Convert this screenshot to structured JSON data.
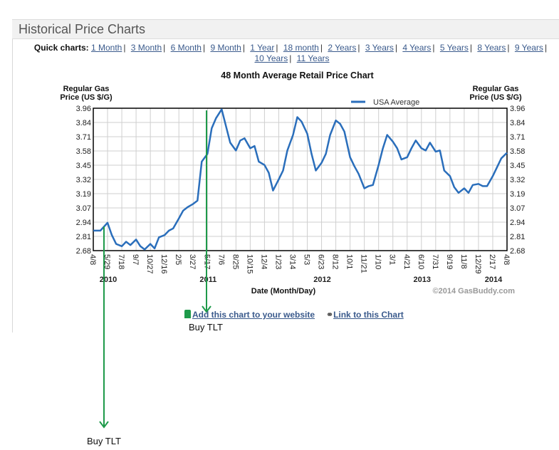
{
  "header": {
    "title": "Historical Price Charts"
  },
  "quick_charts": {
    "label": "Quick charts:",
    "links": [
      "1 Month",
      "3 Month",
      "6 Month",
      "9 Month",
      "1 Year",
      "18 month",
      "2 Years",
      "3 Years",
      "4 Years",
      "5 Years",
      "8 Years",
      "9 Years",
      "10 Years",
      "11 Years"
    ]
  },
  "footer_links": {
    "add_chart": "Add this chart to your website",
    "link_chart": "Link to this Chart"
  },
  "annotations": [
    {
      "text": "Buy TLT",
      "color": "#1e9a4a"
    },
    {
      "text": "Buy TLT",
      "color": "#1e9a4a"
    }
  ],
  "chart_data": {
    "type": "line",
    "title": "48 Month Average Retail Price Chart",
    "ylabel": "Regular Gas Price (US $/G)",
    "xlabel": "Date (Month/Day)",
    "ylim": [
      2.68,
      3.96
    ],
    "y_ticks": [
      "3.96",
      "3.84",
      "3.71",
      "3.58",
      "3.45",
      "3.32",
      "3.19",
      "3.07",
      "2.94",
      "2.81",
      "2.68"
    ],
    "x_ticks": [
      "4/8",
      "5/29",
      "7/18",
      "9/7",
      "10/27",
      "12/16",
      "2/5",
      "3/27",
      "5/17",
      "7/6",
      "8/25",
      "10/15",
      "12/4",
      "1/23",
      "3/14",
      "5/3",
      "6/23",
      "8/12",
      "10/1",
      "11/21",
      "1/10",
      "3/1",
      "4/21",
      "6/10",
      "7/31",
      "9/19",
      "11/8",
      "12/29",
      "2/17",
      "4/8"
    ],
    "year_labels": [
      {
        "label": "2010",
        "tick_index": 1
      },
      {
        "label": "2011",
        "tick_index": 8
      },
      {
        "label": "2012",
        "tick_index": 16
      },
      {
        "label": "2013",
        "tick_index": 23
      },
      {
        "label": "2014",
        "tick_index": 28
      }
    ],
    "legend": {
      "entries": [
        "USA Average"
      ],
      "position": "top-right"
    },
    "grid": true,
    "copyright": "©2014 GasBuddy.com",
    "series": [
      {
        "name": "USA Average",
        "color": "#2a6ebb",
        "x_tick_positions": [
          0,
          0.5,
          1,
          1.3,
          1.6,
          2,
          2.3,
          2.6,
          3,
          3.3,
          3.6,
          4,
          4.3,
          4.6,
          5,
          5.3,
          5.6,
          6,
          6.3,
          6.6,
          7,
          7.3,
          7.6,
          8,
          8.3,
          8.6,
          9,
          9.3,
          9.6,
          10,
          10.3,
          10.6,
          11,
          11.3,
          11.6,
          12,
          12.3,
          12.6,
          13,
          13.3,
          13.6,
          14,
          14.3,
          14.6,
          15,
          15.3,
          15.6,
          16,
          16.3,
          16.6,
          17,
          17.3,
          17.6,
          18,
          18.3,
          18.6,
          19,
          19.3,
          19.6,
          20,
          20.3,
          20.6,
          21,
          21.3,
          21.6,
          22,
          22.3,
          22.6,
          23,
          23.3,
          23.6,
          24,
          24.3,
          24.6,
          25,
          25.3,
          25.6,
          26,
          26.3,
          26.6,
          27,
          27.3,
          27.6,
          28,
          28.3,
          28.6,
          29
        ],
        "values": [
          2.86,
          2.86,
          2.93,
          2.82,
          2.74,
          2.72,
          2.76,
          2.73,
          2.78,
          2.72,
          2.69,
          2.74,
          2.7,
          2.8,
          2.82,
          2.86,
          2.88,
          2.97,
          3.04,
          3.07,
          3.1,
          3.13,
          3.48,
          3.55,
          3.78,
          3.87,
          3.95,
          3.8,
          3.65,
          3.58,
          3.67,
          3.69,
          3.6,
          3.62,
          3.48,
          3.45,
          3.38,
          3.22,
          3.32,
          3.4,
          3.58,
          3.72,
          3.88,
          3.84,
          3.73,
          3.55,
          3.4,
          3.47,
          3.55,
          3.72,
          3.85,
          3.82,
          3.75,
          3.52,
          3.44,
          3.37,
          3.24,
          3.26,
          3.27,
          3.45,
          3.6,
          3.72,
          3.66,
          3.6,
          3.5,
          3.52,
          3.6,
          3.67,
          3.6,
          3.58,
          3.65,
          3.57,
          3.58,
          3.4,
          3.35,
          3.25,
          3.2,
          3.24,
          3.2,
          3.27,
          3.28,
          3.26,
          3.26,
          3.35,
          3.43,
          3.51,
          3.56
        ]
      }
    ]
  }
}
